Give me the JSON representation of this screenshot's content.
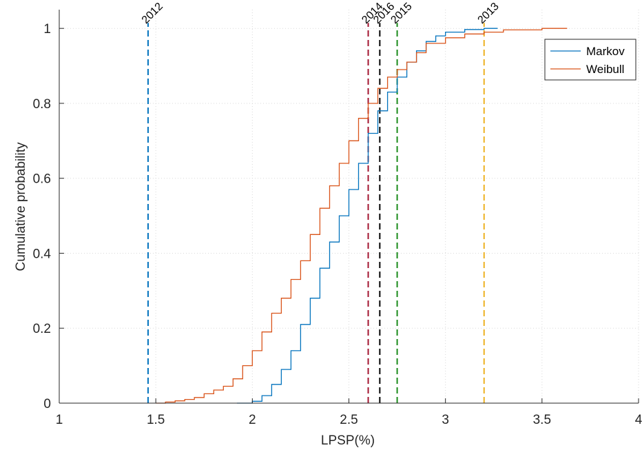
{
  "chart_data": {
    "type": "line",
    "xlabel": "LPSP(%)",
    "ylabel": "Cumulative probability",
    "xlim": [
      1,
      4
    ],
    "ylim": [
      0,
      1.05
    ],
    "xticks": [
      "1",
      "1.5",
      "2",
      "2.5",
      "3",
      "3.5",
      "4"
    ],
    "yticks": [
      "0",
      "0.2",
      "0.4",
      "0.6",
      "0.8",
      "1"
    ],
    "grid": "dotted",
    "legend_position": "top-right",
    "series": [
      {
        "name": "Markov",
        "color": "#0072BD",
        "points": [
          [
            1.92,
            0
          ],
          [
            2.0,
            0.005
          ],
          [
            2.05,
            0.02
          ],
          [
            2.1,
            0.05
          ],
          [
            2.15,
            0.09
          ],
          [
            2.2,
            0.14
          ],
          [
            2.25,
            0.21
          ],
          [
            2.3,
            0.28
          ],
          [
            2.35,
            0.36
          ],
          [
            2.4,
            0.43
          ],
          [
            2.45,
            0.5
          ],
          [
            2.5,
            0.57
          ],
          [
            2.55,
            0.64
          ],
          [
            2.6,
            0.72
          ],
          [
            2.65,
            0.78
          ],
          [
            2.7,
            0.83
          ],
          [
            2.75,
            0.87
          ],
          [
            2.8,
            0.91
          ],
          [
            2.85,
            0.94
          ],
          [
            2.9,
            0.965
          ],
          [
            2.95,
            0.98
          ],
          [
            3.0,
            0.99
          ],
          [
            3.1,
            0.997
          ],
          [
            3.2,
            1.0
          ],
          [
            3.27,
            1.0
          ]
        ]
      },
      {
        "name": "Weibull",
        "color": "#D95319",
        "points": [
          [
            1.5,
            0
          ],
          [
            1.55,
            0.003
          ],
          [
            1.6,
            0.006
          ],
          [
            1.65,
            0.01
          ],
          [
            1.7,
            0.015
          ],
          [
            1.75,
            0.025
          ],
          [
            1.8,
            0.035
          ],
          [
            1.85,
            0.045
          ],
          [
            1.9,
            0.065
          ],
          [
            1.95,
            0.1
          ],
          [
            2.0,
            0.14
          ],
          [
            2.05,
            0.19
          ],
          [
            2.1,
            0.24
          ],
          [
            2.15,
            0.28
          ],
          [
            2.2,
            0.33
          ],
          [
            2.25,
            0.38
          ],
          [
            2.3,
            0.45
          ],
          [
            2.35,
            0.52
          ],
          [
            2.4,
            0.58
          ],
          [
            2.45,
            0.64
          ],
          [
            2.5,
            0.7
          ],
          [
            2.55,
            0.76
          ],
          [
            2.6,
            0.8
          ],
          [
            2.65,
            0.84
          ],
          [
            2.7,
            0.87
          ],
          [
            2.75,
            0.89
          ],
          [
            2.8,
            0.91
          ],
          [
            2.85,
            0.935
          ],
          [
            2.9,
            0.96
          ],
          [
            3.0,
            0.975
          ],
          [
            3.1,
            0.985
          ],
          [
            3.2,
            0.99
          ],
          [
            3.3,
            0.996
          ],
          [
            3.5,
            1.0
          ],
          [
            3.63,
            1.0
          ]
        ]
      }
    ],
    "vertical_lines": [
      {
        "year": "2012",
        "x": 1.46,
        "color": "#0072BD"
      },
      {
        "year": "2014",
        "x": 2.6,
        "color": "#A2142F"
      },
      {
        "year": "2016",
        "x": 2.66,
        "color": "#000000"
      },
      {
        "year": "2015",
        "x": 2.75,
        "color": "#1A8A1A"
      },
      {
        "year": "2013",
        "x": 3.2,
        "color": "#EDB120"
      }
    ]
  }
}
